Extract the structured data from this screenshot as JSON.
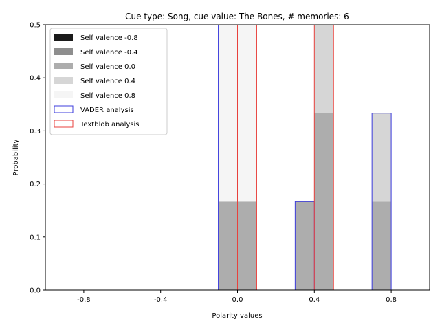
{
  "chart_data": {
    "type": "bar",
    "title": "Cue type: Song, cue value: The Bones, # memories: 6",
    "xlabel": "Polarity values",
    "ylabel": "Probability",
    "xlim": [
      -1.0,
      1.0
    ],
    "ylim": [
      0,
      0.5
    ],
    "x_ticks": [
      {
        "value": -0.8,
        "label": "-0.8"
      },
      {
        "value": -0.4,
        "label": "-0.4"
      },
      {
        "value": 0.0,
        "label": "0.0"
      },
      {
        "value": 0.4,
        "label": "0.4"
      },
      {
        "value": 0.8,
        "label": "0.8"
      }
    ],
    "y_ticks": [
      {
        "value": 0.0,
        "label": "0.0"
      },
      {
        "value": 0.1,
        "label": "0.1"
      },
      {
        "value": 0.2,
        "label": "0.2"
      },
      {
        "value": 0.3,
        "label": "0.3"
      },
      {
        "value": 0.4,
        "label": "0.4"
      },
      {
        "value": 0.5,
        "label": "0.5"
      }
    ],
    "bin_width": 0.1,
    "stacked_series": [
      {
        "name": "Self valence -0.8",
        "color": "#1a1a1a",
        "bins": [
          {
            "x0": -0.1,
            "value": 0
          },
          {
            "x0": 0.0,
            "value": 0
          },
          {
            "x0": 0.3,
            "value": 0
          },
          {
            "x0": 0.4,
            "value": 0
          },
          {
            "x0": 0.7,
            "value": 0
          }
        ]
      },
      {
        "name": "Self valence -0.4",
        "color": "#8e8e8e",
        "bins": [
          {
            "x0": -0.1,
            "value": 0
          },
          {
            "x0": 0.0,
            "value": 0
          },
          {
            "x0": 0.3,
            "value": 0
          },
          {
            "x0": 0.4,
            "value": 0
          },
          {
            "x0": 0.7,
            "value": 0
          }
        ]
      },
      {
        "name": "Self valence 0.0",
        "color": "#adadad",
        "bins": [
          {
            "x0": -0.1,
            "value": 0.1667
          },
          {
            "x0": 0.0,
            "value": 0.1667
          },
          {
            "x0": 0.3,
            "value": 0.1667
          },
          {
            "x0": 0.4,
            "value": 0.3333
          },
          {
            "x0": 0.7,
            "value": 0.1667
          }
        ]
      },
      {
        "name": "Self valence 0.4",
        "color": "#d6d6d6",
        "bins": [
          {
            "x0": -0.1,
            "value": 0
          },
          {
            "x0": 0.0,
            "value": 0
          },
          {
            "x0": 0.3,
            "value": 0
          },
          {
            "x0": 0.4,
            "value": 0.1667
          },
          {
            "x0": 0.7,
            "value": 0.1667
          }
        ]
      },
      {
        "name": "Self valence 0.8",
        "color": "#f5f5f5",
        "bins": [
          {
            "x0": -0.1,
            "value": 0.3333
          },
          {
            "x0": 0.0,
            "value": 0.3333
          },
          {
            "x0": 0.3,
            "value": 0
          },
          {
            "x0": 0.4,
            "value": 0
          },
          {
            "x0": 0.7,
            "value": 0
          }
        ]
      }
    ],
    "outline_series": [
      {
        "name": "VADER analysis",
        "color": "#3c3cdc",
        "bins": [
          {
            "x0": -0.1,
            "value": 0.5
          },
          {
            "x0": 0.3,
            "value": 0.1667
          },
          {
            "x0": 0.7,
            "value": 0.3333
          }
        ]
      },
      {
        "name": "Textblob analysis",
        "color": "#e8413c",
        "bins": [
          {
            "x0": 0.0,
            "value": 0.5
          },
          {
            "x0": 0.4,
            "value": 0.5
          }
        ]
      }
    ],
    "legend_position": "upper-left"
  }
}
